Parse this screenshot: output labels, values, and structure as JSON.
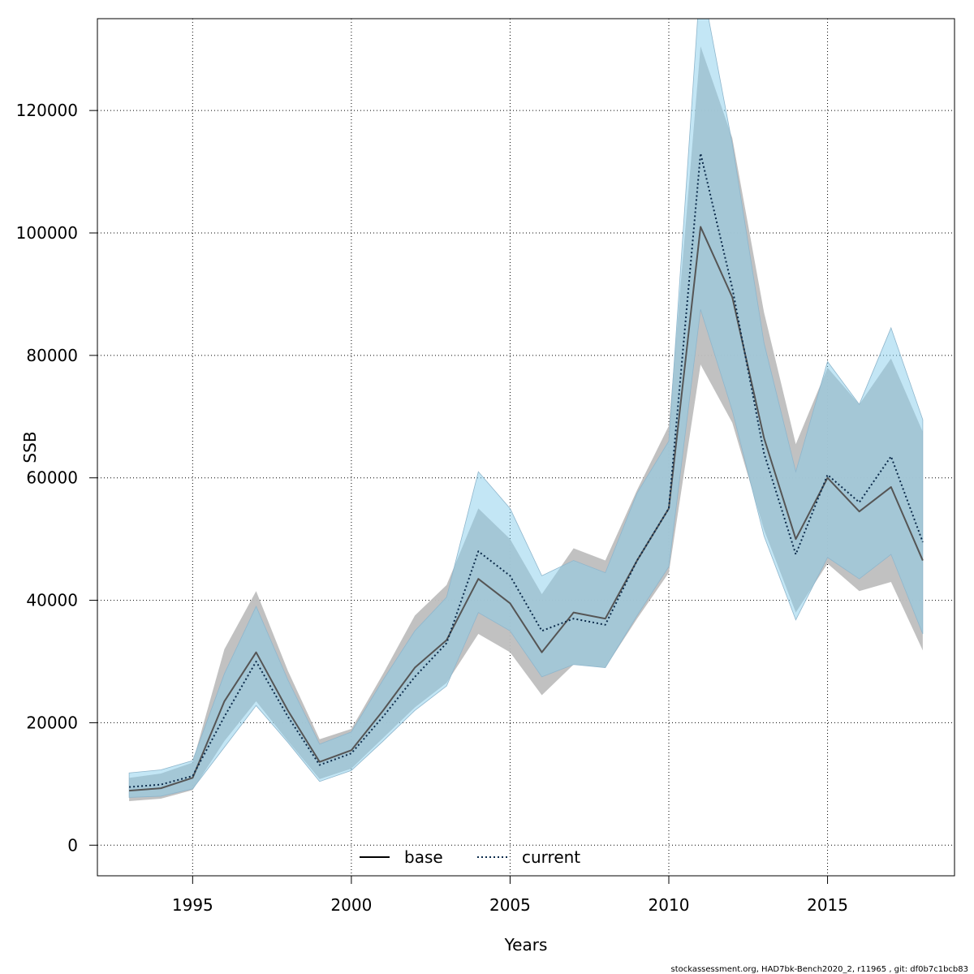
{
  "chart_data": {
    "type": "line",
    "title": "",
    "xlabel": "Years",
    "ylabel": "SSB",
    "xlim": [
      1992,
      2019
    ],
    "ylim": [
      -5000,
      135000
    ],
    "x_ticks": [
      1995,
      2000,
      2005,
      2010,
      2015
    ],
    "y_ticks": [
      0,
      20000,
      40000,
      60000,
      80000,
      100000,
      120000
    ],
    "grid": true,
    "legend_position": "bottom-center",
    "x": [
      1993,
      1994,
      1995,
      1996,
      1997,
      1998,
      1999,
      2000,
      2001,
      2002,
      2003,
      2004,
      2005,
      2006,
      2007,
      2008,
      2009,
      2010,
      2011,
      2012,
      2013,
      2014,
      2015,
      2016,
      2017,
      2018
    ],
    "series": [
      {
        "name": "base",
        "line_style": "solid",
        "line_color": "#555555",
        "band_color": "#bebebe",
        "values": [
          8900,
          9300,
          11000,
          23500,
          31500,
          22000,
          13600,
          15500,
          22000,
          29000,
          33500,
          43500,
          39500,
          31500,
          38000,
          37000,
          46500,
          55000,
          101000,
          89500,
          66500,
          50000,
          60000,
          54500,
          58500,
          46500
        ],
        "lower": [
          7200,
          7600,
          9000,
          17000,
          23500,
          17000,
          10800,
          12500,
          17500,
          22500,
          26500,
          34500,
          31500,
          24500,
          29500,
          29000,
          37000,
          44500,
          78500,
          69000,
          51500,
          38000,
          46000,
          41500,
          43000,
          31800
        ],
        "upper": [
          11000,
          11700,
          13500,
          32000,
          41500,
          28500,
          17300,
          19000,
          28000,
          37500,
          42500,
          55000,
          50000,
          41000,
          48500,
          46500,
          58000,
          68500,
          130500,
          115500,
          87000,
          65500,
          78000,
          72000,
          79500,
          67500
        ]
      },
      {
        "name": "current",
        "line_style": "dotted",
        "line_color": "#0b2a4a",
        "band_color": "#87ceeb",
        "values": [
          9500,
          9900,
          11300,
          21000,
          30000,
          21000,
          13100,
          15000,
          21000,
          27500,
          33000,
          48000,
          44000,
          35000,
          37000,
          36000,
          46500,
          55000,
          113000,
          91000,
          64000,
          47500,
          60500,
          56000,
          63500,
          49500
        ],
        "lower": [
          7800,
          8000,
          9200,
          16000,
          22800,
          16800,
          10400,
          12200,
          17000,
          22000,
          26000,
          38000,
          35000,
          27500,
          29500,
          29000,
          37500,
          45500,
          87500,
          71000,
          50500,
          36800,
          47000,
          43500,
          47500,
          34500
        ],
        "upper": [
          11800,
          12300,
          13800,
          28000,
          39000,
          27000,
          16500,
          18500,
          27000,
          35000,
          40500,
          61000,
          55000,
          44000,
          46500,
          44500,
          57500,
          66000,
          142000,
          114500,
          82000,
          61000,
          79000,
          72000,
          84500,
          69500
        ]
      }
    ]
  },
  "footer": "stockassessment.org, HAD7bk-Bench2020_2, r11965 , git: df0b7c1bcb83"
}
